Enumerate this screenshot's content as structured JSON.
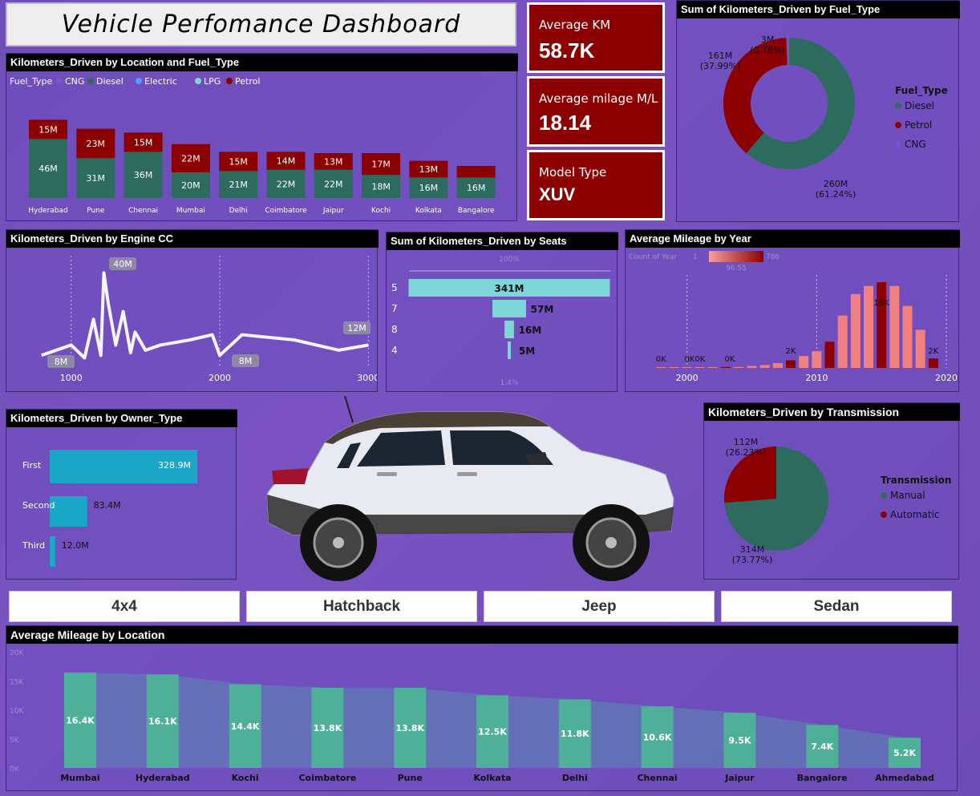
{
  "dashboard": {
    "title": "Vehicle Perfomance Dashboard"
  },
  "kpis": {
    "avg_km": {
      "label": "Average KM",
      "value": "58.7K"
    },
    "avg_mileage": {
      "label": "Average milage M/L",
      "value": "18.14"
    },
    "model_type": {
      "label": "Model Type",
      "value": "XUV"
    }
  },
  "categories": [
    "4x4",
    "Hatchback",
    "Jeep",
    "Sedan"
  ],
  "colors": {
    "cng": "#7b4fd6",
    "diesel": "#2d6b5e",
    "electric": "#4a9eff",
    "lpg": "#7fd6d6",
    "petrol": "#8b0000",
    "teal": "#7fd6d6",
    "salmon": "#f08080",
    "darkred": "#8b0000",
    "owner": "#1aa7c7"
  },
  "chart_data": [
    {
      "id": "km_location_fuel",
      "type": "bar",
      "title": "Kilometers_Driven by Location and Fuel_Type",
      "legend_title": "Fuel_Type",
      "legend": [
        "CNG",
        "Diesel",
        "Electric",
        "LPG",
        "Petrol"
      ],
      "categories": [
        "Hyderabad",
        "Pune",
        "Chennai",
        "Mumbai",
        "Delhi",
        "Coimbatore",
        "Jaipur",
        "Kochi",
        "Kolkata",
        "Bangalore"
      ],
      "series": [
        {
          "name": "Diesel",
          "values": [
            46,
            31,
            36,
            20,
            21,
            22,
            22,
            18,
            16,
            16
          ],
          "labels": [
            "46M",
            "31M",
            "36M",
            "20M",
            "21M",
            "22M",
            "22M",
            "18M",
            "16M",
            "16M"
          ]
        },
        {
          "name": "Petrol",
          "values": [
            15,
            23,
            15,
            22,
            15,
            14,
            13,
            17,
            13,
            9
          ],
          "labels": [
            "15M",
            "23M",
            "15M",
            "22M",
            "15M",
            "14M",
            "13M",
            "17M",
            "13M",
            ""
          ]
        }
      ]
    },
    {
      "id": "km_fuel_donut",
      "type": "pie",
      "title": "Sum of Kilometers_Driven by Fuel_Type",
      "legend_title": "Fuel_Type",
      "legend": [
        "Diesel",
        "Petrol",
        "CNG"
      ],
      "slices": [
        {
          "name": "Diesel",
          "value": 260,
          "label": "260M",
          "pct": "(61.24%)"
        },
        {
          "name": "Petrol",
          "value": 161,
          "label": "161M",
          "pct": "(37.99%)"
        },
        {
          "name": "CNG",
          "value": 3,
          "label": "3M",
          "pct": "(0.78%)"
        }
      ]
    },
    {
      "id": "km_engine_cc",
      "type": "line",
      "title": "Kilometers_Driven by Engine CC",
      "x": [
        800,
        1000,
        1090,
        1150,
        1200,
        1220,
        1250,
        1300,
        1350,
        1400,
        1430,
        1460,
        1500,
        1600,
        1800,
        1950,
        2000,
        2150,
        2500,
        2800,
        3000
      ],
      "y": [
        8,
        12,
        7,
        22,
        8,
        40,
        28,
        12,
        25,
        9,
        17,
        14,
        10,
        12,
        14,
        16,
        8,
        16,
        14,
        10,
        12
      ],
      "xticks": [
        "1000",
        "2000",
        "3000"
      ],
      "xtick_values": [
        1000,
        2000,
        3000
      ],
      "xlim": [
        780,
        3020
      ],
      "ylim": [
        0,
        42
      ],
      "annotations": [
        "40M",
        "8M",
        "8M",
        "12M"
      ]
    },
    {
      "id": "km_seats",
      "type": "bar",
      "title": "Sum of Kilometers_Driven by Seats",
      "categories": [
        "5",
        "7",
        "8",
        "4"
      ],
      "values": [
        341,
        57,
        16,
        5
      ],
      "labels": [
        "341M",
        "57M",
        "16M",
        "5M"
      ],
      "top_label": "100%",
      "bottom_label": "1.4%"
    },
    {
      "id": "mileage_year",
      "type": "bar",
      "title": "Average Mileage by Year",
      "legend_title": "Count of Year",
      "legend_min": "1",
      "legend_max": "786",
      "legend_mid": "96.55",
      "x": [
        1998,
        1999,
        2000,
        2001,
        2002,
        2003,
        2004,
        2005,
        2006,
        2007,
        2008,
        2009,
        2010,
        2011,
        2012,
        2013,
        2014,
        2015,
        2016,
        2017,
        2018,
        2019
      ],
      "values": [
        0.1,
        0.0,
        0.1,
        0.1,
        0.1,
        0.2,
        0.2,
        0.4,
        0.6,
        1.0,
        1.6,
        2.5,
        3.5,
        5.5,
        11.0,
        15.5,
        17.2,
        18.0,
        17.2,
        13.0,
        8.0,
        2.0
      ],
      "xticks": [
        "2000",
        "2010",
        "2020"
      ],
      "xtick_values": [
        2000,
        2010,
        2020
      ],
      "xlim": [
        1996,
        2020
      ],
      "annotations": [
        "0K",
        "0K",
        "0K",
        "0K",
        "2K",
        "18K",
        "2K"
      ]
    },
    {
      "id": "km_owner",
      "type": "bar",
      "title": "Kilometers_Driven by Owner_Type",
      "categories": [
        "First",
        "Second",
        "Third"
      ],
      "values": [
        328.9,
        83.4,
        12.0
      ],
      "labels": [
        "328.9M",
        "83.4M",
        "12.0M"
      ]
    },
    {
      "id": "km_transmission",
      "type": "pie",
      "title": "Kilometers_Driven by Transmission",
      "legend_title": "Transmission",
      "legend": [
        "Manual",
        "Automatic"
      ],
      "slices": [
        {
          "name": "Manual",
          "value": 314,
          "label": "314M",
          "pct": "(73.77%)"
        },
        {
          "name": "Automatic",
          "value": 112,
          "label": "112M",
          "pct": "(26.23%)"
        }
      ]
    },
    {
      "id": "mileage_location",
      "type": "bar",
      "title": "Average Mileage by Location",
      "categories": [
        "Mumbai",
        "Hyderabad",
        "Kochi",
        "Coimbatore",
        "Pune",
        "Kolkata",
        "Delhi",
        "Chennai",
        "Jaipur",
        "Bangalore",
        "Ahmedabad"
      ],
      "values": [
        16.4,
        16.1,
        14.4,
        13.8,
        13.8,
        12.5,
        11.8,
        10.6,
        9.5,
        7.4,
        5.2
      ],
      "labels": [
        "16.4K",
        "16.1K",
        "14.4K",
        "13.8K",
        "13.8K",
        "12.5K",
        "11.8K",
        "10.6K",
        "9.5K",
        "7.4K",
        "5.2K"
      ],
      "yticks": [
        "20K",
        "15K",
        "10K",
        "5K",
        "0K"
      ],
      "ylim": [
        0,
        20
      ]
    }
  ]
}
